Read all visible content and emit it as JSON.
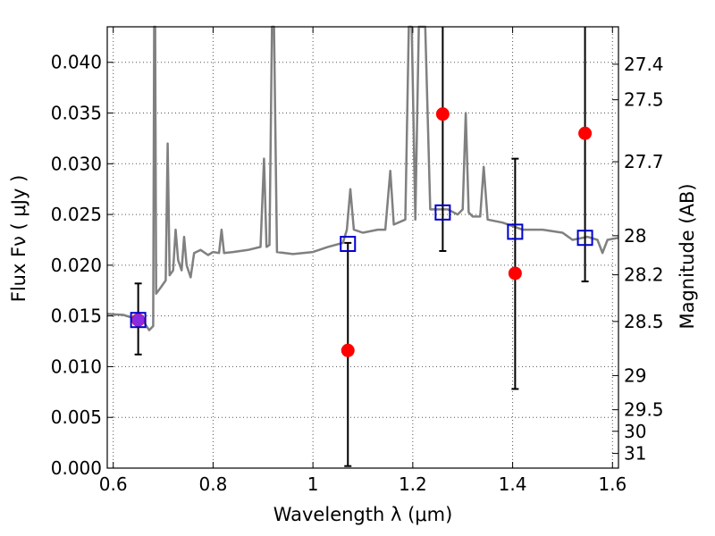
{
  "chart_data": {
    "type": "scatter",
    "xlabel": "Wavelength  λ (μm)",
    "ylabel": "Flux  Fν  ( μJy )",
    "ylabel2": "Magnitude (AB)",
    "xlim": [
      0.588,
      1.612
    ],
    "ylim": [
      0.0,
      0.0435
    ],
    "grid": true,
    "x_ticks": [
      0.6,
      0.8,
      1.0,
      1.2,
      1.4,
      1.6
    ],
    "x_tick_labels": [
      "0.6",
      "0.8",
      "1",
      "1.2",
      "1.4",
      "1.6"
    ],
    "y_ticks": [
      0.0,
      0.005,
      0.01,
      0.015,
      0.02,
      0.025,
      0.03,
      0.035,
      0.04
    ],
    "y_tick_labels": [
      "0.000",
      "0.005",
      "0.010",
      "0.015",
      "0.020",
      "0.025",
      "0.030",
      "0.035",
      "0.040"
    ],
    "right_ticks": [
      {
        "label": "27.4",
        "mag": 27.4
      },
      {
        "label": "27.5",
        "mag": 27.5
      },
      {
        "label": "27.7",
        "mag": 27.7
      },
      {
        "label": "28",
        "mag": 28.0
      },
      {
        "label": "28.2",
        "mag": 28.2
      },
      {
        "label": "28.5",
        "mag": 28.5
      },
      {
        "label": "29",
        "mag": 29.0
      },
      {
        "label": "29.5",
        "mag": 29.5
      },
      {
        "label": "30",
        "mag": 30.0
      },
      {
        "label": "31",
        "mag": 31.0
      }
    ],
    "colors": {
      "model": "#808080",
      "observed": "#ff0000",
      "model_flux": "#0000cc",
      "errorbar": "#000000",
      "overlap": "#8a2be2",
      "grid": "#555555"
    },
    "series": [
      {
        "type": "line",
        "values": [
          [
            0.588,
            0.0152
          ],
          [
            0.62,
            0.0151
          ],
          [
            0.64,
            0.0148
          ],
          [
            0.66,
            0.0145
          ],
          [
            0.672,
            0.0136
          ],
          [
            0.68,
            0.014
          ],
          [
            0.682,
            0.0435
          ],
          [
            0.684,
            0.0435
          ],
          [
            0.686,
            0.0172
          ],
          [
            0.695,
            0.0178
          ],
          [
            0.705,
            0.0185
          ],
          [
            0.709,
            0.032
          ],
          [
            0.713,
            0.019
          ],
          [
            0.72,
            0.0195
          ],
          [
            0.725,
            0.0235
          ],
          [
            0.73,
            0.0205
          ],
          [
            0.737,
            0.0195
          ],
          [
            0.742,
            0.0228
          ],
          [
            0.747,
            0.02
          ],
          [
            0.755,
            0.0188
          ],
          [
            0.762,
            0.0212
          ],
          [
            0.775,
            0.0215
          ],
          [
            0.79,
            0.021
          ],
          [
            0.8,
            0.0213
          ],
          [
            0.812,
            0.0212
          ],
          [
            0.817,
            0.0235
          ],
          [
            0.822,
            0.0212
          ],
          [
            0.84,
            0.0213
          ],
          [
            0.87,
            0.0215
          ],
          [
            0.895,
            0.0218
          ],
          [
            0.902,
            0.0305
          ],
          [
            0.907,
            0.0218
          ],
          [
            0.913,
            0.022
          ],
          [
            0.918,
            0.0435
          ],
          [
            0.922,
            0.0435
          ],
          [
            0.928,
            0.0213
          ],
          [
            0.96,
            0.0211
          ],
          [
            1.0,
            0.0213
          ],
          [
            1.03,
            0.0218
          ],
          [
            1.06,
            0.0222
          ],
          [
            1.068,
            0.0235
          ],
          [
            1.075,
            0.0275
          ],
          [
            1.082,
            0.0235
          ],
          [
            1.1,
            0.0232
          ],
          [
            1.13,
            0.0235
          ],
          [
            1.145,
            0.0235
          ],
          [
            1.155,
            0.0293
          ],
          [
            1.162,
            0.024
          ],
          [
            1.185,
            0.0245
          ],
          [
            1.192,
            0.0435
          ],
          [
            1.198,
            0.0435
          ],
          [
            1.205,
            0.0245
          ],
          [
            1.212,
            0.0435
          ],
          [
            1.225,
            0.0435
          ],
          [
            1.235,
            0.0255
          ],
          [
            1.25,
            0.0255
          ],
          [
            1.27,
            0.0255
          ],
          [
            1.29,
            0.025
          ],
          [
            1.3,
            0.0255
          ],
          [
            1.306,
            0.035
          ],
          [
            1.312,
            0.0252
          ],
          [
            1.32,
            0.0248
          ],
          [
            1.335,
            0.0248
          ],
          [
            1.342,
            0.0297
          ],
          [
            1.35,
            0.0245
          ],
          [
            1.38,
            0.0242
          ],
          [
            1.42,
            0.0235
          ],
          [
            1.46,
            0.0235
          ],
          [
            1.5,
            0.0232
          ],
          [
            1.52,
            0.0225
          ],
          [
            1.55,
            0.0228
          ],
          [
            1.57,
            0.0225
          ],
          [
            1.58,
            0.0212
          ],
          [
            1.59,
            0.0225
          ],
          [
            1.612,
            0.0227
          ]
        ]
      },
      {
        "type": "errorbar",
        "points": [
          {
            "x": 0.65,
            "y": 0.0146,
            "ylow": 0.0112,
            "yhigh": 0.0182
          },
          {
            "x": 1.07,
            "y": 0.0116,
            "ylow": 0.0002,
            "yhigh": 0.0222
          },
          {
            "x": 1.26,
            "y": 0.0349,
            "ylow": 0.0214,
            "yhigh": 0.0435
          },
          {
            "x": 1.405,
            "y": 0.0192,
            "ylow": 0.0078,
            "yhigh": 0.0305
          },
          {
            "x": 1.545,
            "y": 0.033,
            "ylow": 0.0184,
            "yhigh": 0.0435
          }
        ]
      },
      {
        "type": "scatter",
        "points": [
          {
            "x": 0.65,
            "y": 0.0146
          },
          {
            "x": 1.07,
            "y": 0.0221
          },
          {
            "x": 1.26,
            "y": 0.0252
          },
          {
            "x": 1.405,
            "y": 0.0233
          },
          {
            "x": 1.545,
            "y": 0.0227
          }
        ]
      }
    ]
  }
}
